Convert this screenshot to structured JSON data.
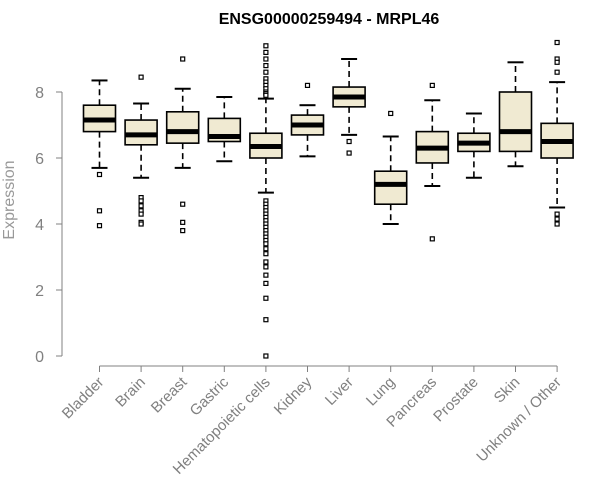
{
  "chart_data": {
    "type": "box",
    "title": "ENSG00000259494 - MRPL46",
    "ylabel": "Expression",
    "xlabel": "",
    "ylim": [
      0,
      9.6
    ],
    "yticks": [
      0,
      2,
      4,
      6,
      8
    ],
    "box_fill": "#f0ead2",
    "categories": [
      "Bladder",
      "Brain",
      "Breast",
      "Gastric",
      "Hematopoietic cells",
      "Kidney",
      "Liver",
      "Lung",
      "Pancreas",
      "Prostate",
      "Skin",
      "Unknown / Other"
    ],
    "boxes": [
      {
        "name": "Bladder",
        "whisker_low": 5.7,
        "q1": 6.8,
        "median": 7.15,
        "q3": 7.6,
        "whisker_high": 8.35,
        "outliers": [
          5.5,
          4.4,
          3.95
        ]
      },
      {
        "name": "Brain",
        "whisker_low": 5.4,
        "q1": 6.4,
        "median": 6.7,
        "q3": 7.15,
        "whisker_high": 7.65,
        "outliers": [
          8.45,
          4.8,
          4.7,
          4.55,
          4.4,
          4.3,
          4.05,
          4.0
        ]
      },
      {
        "name": "Breast",
        "whisker_low": 5.7,
        "q1": 6.45,
        "median": 6.8,
        "q3": 7.4,
        "whisker_high": 8.1,
        "outliers": [
          9.0,
          4.6,
          4.05,
          3.8
        ]
      },
      {
        "name": "Gastric",
        "whisker_low": 5.9,
        "q1": 6.5,
        "median": 6.65,
        "q3": 7.2,
        "whisker_high": 7.85,
        "outliers": []
      },
      {
        "name": "Hematopoietic cells",
        "whisker_low": 4.95,
        "q1": 6.0,
        "median": 6.35,
        "q3": 6.75,
        "whisker_high": 7.8,
        "outliers": [
          9.4,
          9.2,
          9.0,
          8.8,
          8.6,
          8.4,
          8.3,
          8.2,
          8.1,
          8.0,
          7.95,
          7.9,
          4.7,
          4.6,
          4.5,
          4.4,
          4.3,
          4.2,
          4.1,
          4.0,
          3.9,
          3.8,
          3.7,
          3.6,
          3.5,
          3.4,
          3.25,
          3.1,
          2.85,
          2.7,
          2.45,
          2.2,
          1.75,
          1.1,
          0.0
        ]
      },
      {
        "name": "Kidney",
        "whisker_low": 6.05,
        "q1": 6.7,
        "median": 7.0,
        "q3": 7.3,
        "whisker_high": 7.6,
        "outliers": [
          8.2
        ]
      },
      {
        "name": "Liver",
        "whisker_low": 6.7,
        "q1": 7.55,
        "median": 7.85,
        "q3": 8.15,
        "whisker_high": 9.0,
        "outliers": [
          6.5,
          6.15
        ]
      },
      {
        "name": "Lung",
        "whisker_low": 4.0,
        "q1": 4.6,
        "median": 5.2,
        "q3": 5.6,
        "whisker_high": 6.65,
        "outliers": [
          7.35
        ]
      },
      {
        "name": "Pancreas",
        "whisker_low": 5.15,
        "q1": 5.85,
        "median": 6.3,
        "q3": 6.8,
        "whisker_high": 7.75,
        "outliers": [
          8.2,
          3.55
        ]
      },
      {
        "name": "Prostate",
        "whisker_low": 5.4,
        "q1": 6.2,
        "median": 6.45,
        "q3": 6.75,
        "whisker_high": 7.35,
        "outliers": []
      },
      {
        "name": "Skin",
        "whisker_low": 5.75,
        "q1": 6.2,
        "median": 6.8,
        "q3": 8.0,
        "whisker_high": 8.9,
        "outliers": []
      },
      {
        "name": "Unknown / Other",
        "whisker_low": 4.5,
        "q1": 6.0,
        "median": 6.5,
        "q3": 7.05,
        "whisker_high": 8.3,
        "outliers": [
          9.5,
          9.0,
          8.9,
          8.6,
          4.3,
          4.15,
          4.0
        ]
      }
    ]
  }
}
